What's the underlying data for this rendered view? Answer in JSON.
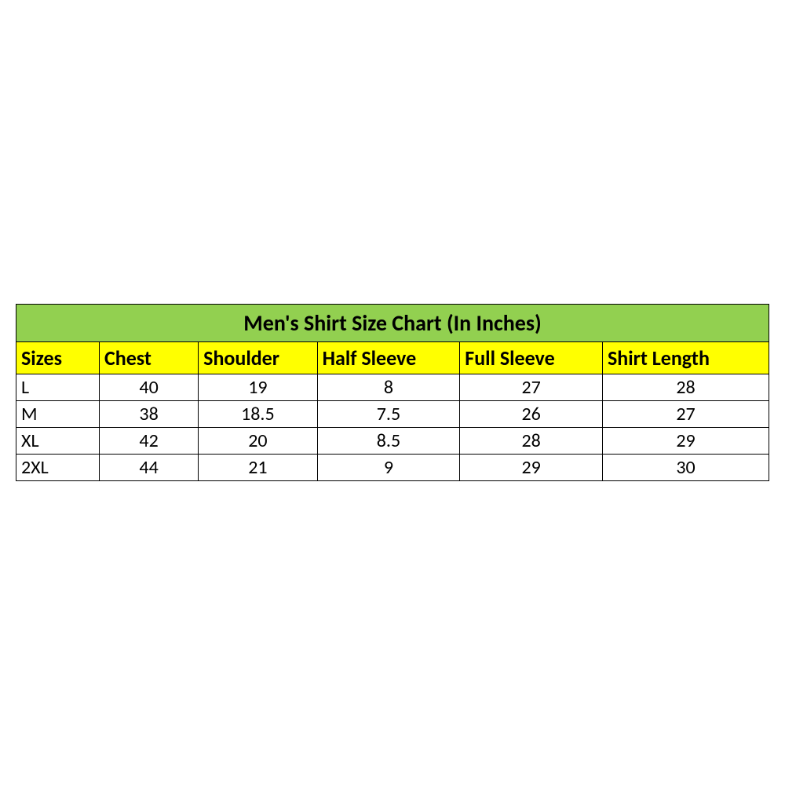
{
  "table": {
    "type": "table",
    "title": "Men's Shirt Size Chart (In Inches)",
    "title_bg": "#92d050",
    "title_color": "#000000",
    "title_fontsize": 28,
    "title_fontweight": "bold",
    "header_bg": "#ffff00",
    "header_color": "#000000",
    "header_fontsize": 26,
    "header_fontweight": "bold",
    "cell_bg": "#ffffff",
    "cell_color": "#000000",
    "cell_fontsize": 24,
    "border_color": "#000000",
    "columns": [
      {
        "label": "Sizes",
        "width_pct": 10.5,
        "align": "left"
      },
      {
        "label": "Chest",
        "width_pct": 12.5,
        "align": "center"
      },
      {
        "label": "Shoulder",
        "width_pct": 15,
        "align": "center"
      },
      {
        "label": "Half Sleeve",
        "width_pct": 18,
        "align": "center"
      },
      {
        "label": "Full Sleeve",
        "width_pct": 18,
        "align": "center"
      },
      {
        "label": "Shirt Length",
        "width_pct": 21,
        "align": "center"
      }
    ],
    "rows": [
      [
        "L",
        "40",
        "19",
        "8",
        "27",
        "28"
      ],
      [
        "M",
        "38",
        "18.5",
        "7.5",
        "26",
        "27"
      ],
      [
        "XL",
        "42",
        "20",
        "8.5",
        "28",
        "29"
      ],
      [
        "2XL",
        "44",
        "21",
        "9",
        "29",
        "30"
      ]
    ]
  }
}
